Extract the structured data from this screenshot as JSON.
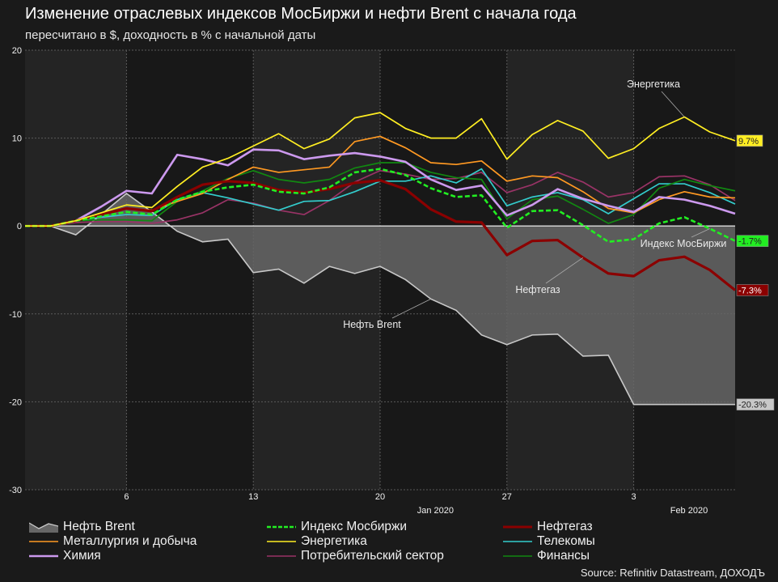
{
  "chart_data": {
    "type": "line",
    "title": "Изменение отраслевых индексов МосБиржи и нефти Brent с начала года",
    "subtitle": "пересчитано в $, доходность в % с начальной даты",
    "xlabel": "",
    "ylabel": "",
    "ylim": [
      -30,
      20
    ],
    "yticks": [
      20,
      10,
      0,
      -10,
      -20,
      -30
    ],
    "ytick_labels": [
      "20",
      "10",
      "0",
      "-10",
      "-20",
      "-30"
    ],
    "x_tick_labels": [
      {
        "index": 4,
        "label": "6"
      },
      {
        "index": 9,
        "label": "13"
      },
      {
        "index": 14,
        "label": "20"
      },
      {
        "index": 19,
        "label": "27"
      },
      {
        "index": 24,
        "label": "3"
      }
    ],
    "month_labels": [
      {
        "index": 16.5,
        "label": "Jan 2020"
      },
      {
        "index": 26.5,
        "label": "Feb 2020"
      }
    ],
    "grid": true,
    "legend_position": "bottom",
    "n_points": 29,
    "series": [
      {
        "name": "Нефть Brent",
        "style": "area",
        "color": "#c8c8c8",
        "fill": "#666666",
        "values": [
          0,
          0,
          -1.0,
          1.3,
          3.7,
          1.6,
          -0.6,
          -1.8,
          -1.5,
          -5.3,
          -4.9,
          -6.5,
          -4.6,
          -5.4,
          -4.6,
          -6.1,
          -8.3,
          -9.6,
          -12.4,
          -13.5,
          -12.4,
          -12.3,
          -14.8,
          -14.7,
          -20.3,
          -20.3,
          -20.3,
          -20.3,
          -20.3
        ],
        "end_label": "-20.3%",
        "end_label_bg": "#c8c8c8",
        "end_label_fg": "#222222"
      },
      {
        "name": "Индекс Мосбиржи",
        "style": "dashed",
        "color": "#22ee22",
        "values": [
          0,
          0,
          0.6,
          1.1,
          1.6,
          1.3,
          3.0,
          3.9,
          4.4,
          4.7,
          3.9,
          3.7,
          4.4,
          6.1,
          6.5,
          5.8,
          4.3,
          3.3,
          3.5,
          -0.2,
          1.7,
          1.8,
          0.1,
          -1.8,
          -1.5,
          0.3,
          1.0,
          -0.3,
          -1.7
        ],
        "end_label": "-1.7%",
        "end_label_bg": "#22ee22",
        "end_label_fg": "#222222"
      },
      {
        "name": "Нефтегаз",
        "style": "thick",
        "color": "#8b0000",
        "values": [
          0,
          0,
          0.6,
          1.3,
          2.0,
          1.7,
          3.3,
          4.7,
          5.1,
          4.9,
          4.1,
          3.8,
          4.2,
          4.9,
          5.2,
          4.2,
          1.9,
          0.5,
          0.4,
          -3.3,
          -1.7,
          -1.6,
          -3.6,
          -5.4,
          -5.7,
          -3.9,
          -3.5,
          -5.0,
          -7.3
        ],
        "end_label": "-7.3%",
        "end_label_bg": "#8b0000",
        "end_label_fg": "#ffffff"
      },
      {
        "name": "Металлургия и добыча",
        "style": "line",
        "color": "#ff9922",
        "values": [
          0,
          0,
          0.6,
          1.3,
          2.0,
          1.8,
          2.8,
          3.7,
          5.3,
          6.7,
          6.1,
          6.4,
          6.7,
          9.6,
          10.2,
          8.9,
          7.2,
          7.0,
          7.4,
          5.1,
          5.7,
          5.5,
          3.9,
          2.0,
          1.5,
          3.0,
          3.9,
          3.3,
          3.2
        ]
      },
      {
        "name": "Энергетика",
        "style": "line",
        "color": "#ffee22",
        "values": [
          0,
          0,
          0.6,
          1.5,
          2.4,
          2.1,
          4.5,
          6.7,
          7.7,
          9.1,
          10.5,
          8.8,
          9.9,
          12.3,
          12.9,
          11.1,
          10.0,
          10.0,
          12.2,
          7.6,
          10.4,
          12.0,
          10.8,
          7.7,
          8.8,
          11.1,
          12.4,
          10.7,
          9.7
        ],
        "end_label": "9.7%",
        "end_label_bg": "#ffee22",
        "end_label_fg": "#222222"
      },
      {
        "name": "Телекомы",
        "style": "line",
        "color": "#33cccc",
        "values": [
          0,
          0,
          0.6,
          1.0,
          1.3,
          1.2,
          3.0,
          3.8,
          3.2,
          2.5,
          1.8,
          2.8,
          2.9,
          3.9,
          5.1,
          5.1,
          5.7,
          4.9,
          6.5,
          2.3,
          3.3,
          3.8,
          3.0,
          1.4,
          3.1,
          4.8,
          4.8,
          3.8,
          2.5
        ]
      },
      {
        "name": "Химия",
        "style": "thick",
        "color": "#cc99ee",
        "values": [
          0,
          0,
          0.6,
          2.2,
          4.0,
          3.7,
          8.1,
          7.6,
          6.9,
          8.7,
          8.6,
          7.6,
          8.0,
          8.3,
          7.9,
          7.3,
          5.3,
          4.1,
          4.6,
          1.2,
          2.4,
          4.2,
          3.1,
          2.3,
          1.6,
          3.3,
          3.0,
          2.3,
          1.4
        ]
      },
      {
        "name": "Потребительский сектор",
        "style": "line",
        "color": "#993366",
        "values": [
          0,
          0,
          0.4,
          0.5,
          0.5,
          0.3,
          0.7,
          1.5,
          3.0,
          2.6,
          1.8,
          1.3,
          2.9,
          5.0,
          6.3,
          5.9,
          5.3,
          5.4,
          6.1,
          3.8,
          4.7,
          6.1,
          5.0,
          3.3,
          3.8,
          5.6,
          5.7,
          4.7,
          2.9
        ]
      },
      {
        "name": "Финансы",
        "style": "line",
        "color": "#118811",
        "values": [
          0,
          0,
          0.6,
          0.7,
          0.7,
          0.6,
          2.8,
          4.0,
          5.4,
          6.3,
          5.3,
          4.9,
          5.3,
          6.6,
          7.2,
          7.2,
          6.1,
          5.5,
          5.3,
          0.8,
          3.0,
          3.4,
          1.9,
          0.3,
          1.3,
          4.3,
          5.3,
          4.6,
          4.0
        ]
      }
    ],
    "annotations": [
      {
        "text": "Энергетика",
        "series": "Энергетика",
        "point_index": 26
      },
      {
        "text": "Индекс МосБиржи",
        "series": "Индекс Мосбиржи",
        "point_index": 27
      },
      {
        "text": "Нефтегаз",
        "series": "Нефтегаз",
        "point_index": 22
      },
      {
        "text": "Нефть Brent",
        "series": "Нефть Brent",
        "point_index": 16
      }
    ]
  },
  "legend": {
    "items": [
      {
        "label": "Нефть Brent",
        "kind": "area",
        "color": "#c8c8c8"
      },
      {
        "label": "Индекс Мосбиржи",
        "kind": "dashed",
        "color": "#22ee22"
      },
      {
        "label": "Нефтегаз",
        "kind": "thick",
        "color": "#8b0000"
      },
      {
        "label": "Металлургия и добыча",
        "kind": "line",
        "color": "#ff9922"
      },
      {
        "label": "Энергетика",
        "kind": "line",
        "color": "#ffee22"
      },
      {
        "label": "Телекомы",
        "kind": "line",
        "color": "#33cccc"
      },
      {
        "label": "Химия",
        "kind": "thick",
        "color": "#cc99ee"
      },
      {
        "label": "Потребительский сектор",
        "kind": "line",
        "color": "#993366"
      },
      {
        "label": "Финансы",
        "kind": "line",
        "color": "#118811"
      }
    ]
  },
  "source": "Source: Refinitiv Datastream, ДОХОДЪ"
}
